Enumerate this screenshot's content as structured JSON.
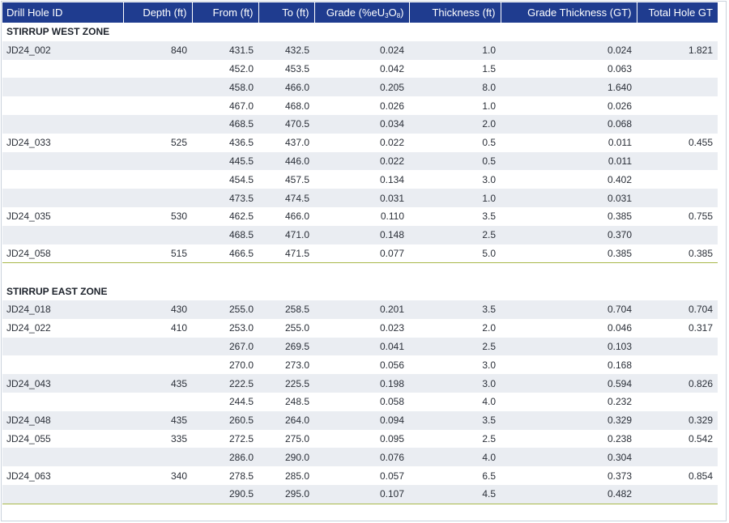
{
  "headers": {
    "hole_id": "Drill Hole ID",
    "depth": "Depth (ft)",
    "from": "From (ft)",
    "to": "To (ft)",
    "grade_prefix": "Grade (%eU",
    "grade_sub1": "3",
    "grade_mid": "O",
    "grade_sub2": "8",
    "grade_suffix": ")",
    "thickness": "Thickness (ft)",
    "gt": "Grade Thickness (GT)",
    "total_gt": "Total Hole GT"
  },
  "west_zone": {
    "title": "STIRRUP WEST ZONE",
    "rows": [
      {
        "hole": "JD24_002",
        "depth": "840",
        "from": "431.5",
        "to": "432.5",
        "grade": "0.024",
        "thick": "1.0",
        "gt": "0.024",
        "total": "1.821"
      },
      {
        "hole": "",
        "depth": "",
        "from": "452.0",
        "to": "453.5",
        "grade": "0.042",
        "thick": "1.5",
        "gt": "0.063",
        "total": ""
      },
      {
        "hole": "",
        "depth": "",
        "from": "458.0",
        "to": "466.0",
        "grade": "0.205",
        "thick": "8.0",
        "gt": "1.640",
        "total": ""
      },
      {
        "hole": "",
        "depth": "",
        "from": "467.0",
        "to": "468.0",
        "grade": "0.026",
        "thick": "1.0",
        "gt": "0.026",
        "total": ""
      },
      {
        "hole": "",
        "depth": "",
        "from": "468.5",
        "to": "470.5",
        "grade": "0.034",
        "thick": "2.0",
        "gt": "0.068",
        "total": ""
      },
      {
        "hole": "JD24_033",
        "depth": "525",
        "from": "436.5",
        "to": "437.0",
        "grade": "0.022",
        "thick": "0.5",
        "gt": "0.011",
        "total": "0.455"
      },
      {
        "hole": "",
        "depth": "",
        "from": "445.5",
        "to": "446.0",
        "grade": "0.022",
        "thick": "0.5",
        "gt": "0.011",
        "total": ""
      },
      {
        "hole": "",
        "depth": "",
        "from": "454.5",
        "to": "457.5",
        "grade": "0.134",
        "thick": "3.0",
        "gt": "0.402",
        "total": ""
      },
      {
        "hole": "",
        "depth": "",
        "from": "473.5",
        "to": "474.5",
        "grade": "0.031",
        "thick": "1.0",
        "gt": "0.031",
        "total": ""
      },
      {
        "hole": "JD24_035",
        "depth": "530",
        "from": "462.5",
        "to": "466.0",
        "grade": "0.110",
        "thick": "3.5",
        "gt": "0.385",
        "total": "0.755"
      },
      {
        "hole": "",
        "depth": "",
        "from": "468.5",
        "to": "471.0",
        "grade": "0.148",
        "thick": "2.5",
        "gt": "0.370",
        "total": ""
      },
      {
        "hole": "JD24_058",
        "depth": "515",
        "from": "466.5",
        "to": "471.5",
        "grade": "0.077",
        "thick": "5.0",
        "gt": "0.385",
        "total": "0.385"
      }
    ]
  },
  "east_zone": {
    "title": "STIRRUP EAST ZONE",
    "rows": [
      {
        "hole": "JD24_018",
        "depth": "430",
        "from": "255.0",
        "to": "258.5",
        "grade": "0.201",
        "thick": "3.5",
        "gt": "0.704",
        "total": "0.704"
      },
      {
        "hole": "JD24_022",
        "depth": "410",
        "from": "253.0",
        "to": "255.0",
        "grade": "0.023",
        "thick": "2.0",
        "gt": "0.046",
        "total": "0.317"
      },
      {
        "hole": "",
        "depth": "",
        "from": "267.0",
        "to": "269.5",
        "grade": "0.041",
        "thick": "2.5",
        "gt": "0.103",
        "total": ""
      },
      {
        "hole": "",
        "depth": "",
        "from": "270.0",
        "to": "273.0",
        "grade": "0.056",
        "thick": "3.0",
        "gt": "0.168",
        "total": ""
      },
      {
        "hole": "JD24_043",
        "depth": "435",
        "from": "222.5",
        "to": "225.5",
        "grade": "0.198",
        "thick": "3.0",
        "gt": "0.594",
        "total": "0.826"
      },
      {
        "hole": "",
        "depth": "",
        "from": "244.5",
        "to": "248.5",
        "grade": "0.058",
        "thick": "4.0",
        "gt": "0.232",
        "total": ""
      },
      {
        "hole": "JD24_048",
        "depth": "435",
        "from": "260.5",
        "to": "264.0",
        "grade": "0.094",
        "thick": "3.5",
        "gt": "0.329",
        "total": "0.329"
      },
      {
        "hole": "JD24_055",
        "depth": "335",
        "from": "272.5",
        "to": "275.0",
        "grade": "0.095",
        "thick": "2.5",
        "gt": "0.238",
        "total": "0.542"
      },
      {
        "hole": "",
        "depth": "",
        "from": "286.0",
        "to": "290.0",
        "grade": "0.076",
        "thick": "4.0",
        "gt": "0.304",
        "total": ""
      },
      {
        "hole": "JD24_063",
        "depth": "340",
        "from": "278.5",
        "to": "285.0",
        "grade": "0.057",
        "thick": "6.5",
        "gt": "0.373",
        "total": "0.854"
      },
      {
        "hole": "",
        "depth": "",
        "from": "290.5",
        "to": "295.0",
        "grade": "0.107",
        "thick": "4.5",
        "gt": "0.482",
        "total": ""
      }
    ]
  },
  "colors": {
    "header_bg": "#1f3c8f",
    "row_shade": "#eaedf2",
    "section_rule": "#a9b84a"
  }
}
